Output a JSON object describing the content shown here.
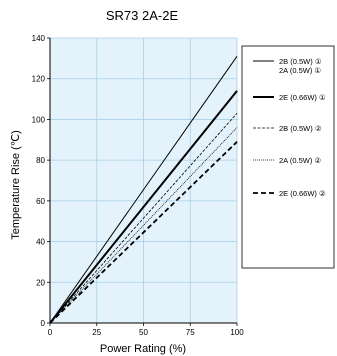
{
  "chart_data": {
    "type": "line",
    "title": "SR73 2A-2E",
    "xlabel": "Power Rating (%)",
    "ylabel": "Temperature Rise (℃)",
    "xlim": [
      0,
      100
    ],
    "ylim": [
      0,
      140
    ],
    "xticks": [
      "0",
      "25",
      "50",
      "75",
      "100"
    ],
    "yticks": [
      "0",
      "20",
      "40",
      "60",
      "80",
      "100",
      "120",
      "140"
    ],
    "grid": true,
    "legend_position": "right",
    "plot_background": "#e3f2fb",
    "grid_color": "#a9cfe6",
    "series": [
      {
        "name": "2B (0.5W) ①",
        "name_line2": "2A (0.5W) ①",
        "style": "thin-solid",
        "x": [
          0,
          100
        ],
        "y": [
          0,
          131
        ]
      },
      {
        "name": "2E (0.66W) ①",
        "style": "thick-solid",
        "x": [
          0,
          100
        ],
        "y": [
          0,
          114
        ]
      },
      {
        "name": "2B (0.5W) ②",
        "style": "dashed",
        "x": [
          0,
          100
        ],
        "y": [
          0,
          103
        ]
      },
      {
        "name": "2A (0.5W) ②",
        "style": "dotted",
        "x": [
          0,
          100
        ],
        "y": [
          0,
          96
        ]
      },
      {
        "name": "2E (0.66W) ②",
        "style": "thick-dashed",
        "x": [
          0,
          100
        ],
        "y": [
          0,
          89
        ]
      }
    ]
  }
}
